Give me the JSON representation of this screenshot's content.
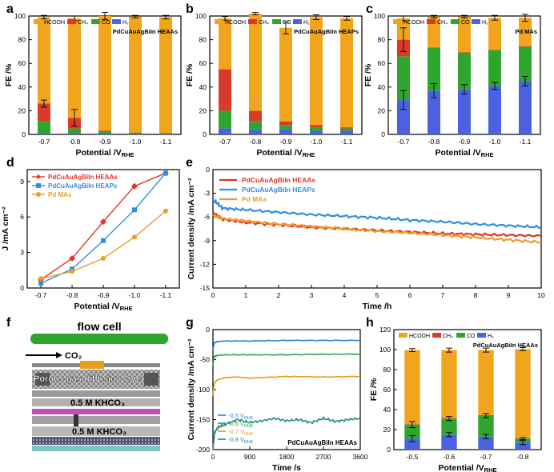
{
  "colors": {
    "hcooh": "#F0A51C",
    "ch4": "#D93A2B",
    "co": "#2EA62E",
    "h2": "#4A62E0",
    "heaa": "#E0352A",
    "heap": "#2F8FE0",
    "pd": "#F09A2A",
    "g05": "#2A86D0",
    "g06": "#2EA64A",
    "g07": "#E89A1C",
    "g08": "#1F8C86"
  },
  "chart_data": [
    {
      "panel": "a",
      "type": "bar",
      "stacked": true,
      "title": "PdCuAuAgBiIn HEAAs",
      "xlabel": "Potential /V",
      "xlabel_sub": "RHE",
      "ylabel": "FE /%",
      "categories": [
        "-0.7",
        "-0.8",
        "-0.9",
        "-1.0",
        "-1.1"
      ],
      "ylim": [
        0,
        100
      ],
      "yticks": [
        "0",
        "20",
        "40",
        "60",
        "80",
        "100"
      ],
      "series": [
        {
          "name": "H₂",
          "color_key": "h2",
          "values": [
            1,
            1,
            1,
            0.5,
            0.5
          ]
        },
        {
          "name": "CO",
          "color_key": "co",
          "values": [
            10,
            4,
            2,
            1,
            0.5
          ]
        },
        {
          "name": "CH₄",
          "color_key": "ch4",
          "values": [
            15,
            9,
            0,
            0,
            0
          ]
        },
        {
          "name": "HCOOH",
          "color_key": "hcooh",
          "values": [
            73,
            84,
            97,
            98,
            98
          ]
        }
      ],
      "errors": [
        {
          "series": 2,
          "cat": 0,
          "err": 3
        },
        {
          "series": 2,
          "cat": 1,
          "err": 7
        },
        {
          "series": 3,
          "cat": 0,
          "err": 1.5
        },
        {
          "series": 3,
          "cat": 1,
          "err": 2
        },
        {
          "series": 3,
          "cat": 2,
          "err": 3
        },
        {
          "series": 3,
          "cat": 3,
          "err": 1
        },
        {
          "series": 3,
          "cat": 4,
          "err": 1.5
        }
      ]
    },
    {
      "panel": "b",
      "type": "bar",
      "stacked": true,
      "title": "PdCuAuAgBiIn HEAPs",
      "xlabel": "Potential /V",
      "xlabel_sub": "RHE",
      "ylabel": "FE /%",
      "categories": [
        "-0.7",
        "-0.8",
        "-0.9",
        "-1.0",
        "-1.1"
      ],
      "ylim": [
        0,
        100
      ],
      "yticks": [
        "0",
        "20",
        "40",
        "60",
        "80",
        "100"
      ],
      "series": [
        {
          "name": "H₂",
          "color_key": "h2",
          "values": [
            5,
            4,
            4,
            3,
            3
          ]
        },
        {
          "name": "CO",
          "color_key": "co",
          "values": [
            15,
            7,
            4,
            3,
            2
          ]
        },
        {
          "name": "CH₄",
          "color_key": "ch4",
          "values": [
            35,
            9,
            3,
            2,
            1
          ]
        },
        {
          "name": "HCOOH",
          "color_key": "hcooh",
          "values": [
            43,
            82,
            79,
            91,
            92
          ]
        }
      ],
      "errors": [
        {
          "series": 3,
          "cat": 0,
          "err": 1.5
        },
        {
          "series": 3,
          "cat": 1,
          "err": 1
        },
        {
          "series": 3,
          "cat": 2,
          "err": 5
        },
        {
          "series": 3,
          "cat": 3,
          "err": 2
        },
        {
          "series": 3,
          "cat": 4,
          "err": 1.5
        }
      ]
    },
    {
      "panel": "c",
      "type": "bar",
      "stacked": true,
      "title": "Pd MAs",
      "xlabel": "Potential /V",
      "xlabel_sub": "RHE",
      "ylabel": "FE /%",
      "categories": [
        "-0.7",
        "-0.8",
        "-0.9",
        "-1.0",
        "-1.1"
      ],
      "ylim": [
        0,
        100
      ],
      "yticks": [
        "0",
        "20",
        "40",
        "60",
        "80",
        "100"
      ],
      "series": [
        {
          "name": "H₂",
          "color_key": "h2",
          "values": [
            29,
            37,
            38,
            41,
            45
          ]
        },
        {
          "name": "CO",
          "color_key": "co",
          "values": [
            37,
            36,
            31,
            30,
            29
          ]
        },
        {
          "name": "CH₄",
          "color_key": "ch4",
          "values": [
            14,
            0.5,
            0.5,
            0.5,
            0.5
          ]
        },
        {
          "name": "HCOOH",
          "color_key": "hcooh",
          "values": [
            18,
            26,
            30,
            27,
            24
          ]
        }
      ],
      "errors": [
        {
          "series": 0,
          "cat": 0,
          "err": 8
        },
        {
          "series": 0,
          "cat": 1,
          "err": 6
        },
        {
          "series": 0,
          "cat": 2,
          "err": 4
        },
        {
          "series": 0,
          "cat": 3,
          "err": 3
        },
        {
          "series": 0,
          "cat": 4,
          "err": 4
        },
        {
          "series": 2,
          "cat": 0,
          "err": 10
        },
        {
          "series": 3,
          "cat": 0,
          "err": 2
        },
        {
          "series": 3,
          "cat": 1,
          "err": 1
        },
        {
          "series": 3,
          "cat": 2,
          "err": 1
        },
        {
          "series": 3,
          "cat": 3,
          "err": 2
        },
        {
          "series": 3,
          "cat": 4,
          "err": 3
        }
      ]
    },
    {
      "panel": "d",
      "type": "line",
      "xlabel": "Potential /V",
      "xlabel_sub": "RHE",
      "ylabel": "J /mA cm⁻²",
      "categories": [
        "-0.7",
        "-0.8",
        "-0.9",
        "-1.0",
        "-1.1"
      ],
      "ylim": [
        0,
        10
      ],
      "yticks": [
        "0",
        "3",
        "6",
        "9"
      ],
      "series": [
        {
          "name": "PdCuAuAgBiIn HEAAs",
          "color_key": "heaa",
          "marker": "diamond",
          "values": [
            0.7,
            2.5,
            5.6,
            8.6,
            9.7
          ]
        },
        {
          "name": "PdCuAuAgBiIn HEAPs",
          "color_key": "heap",
          "marker": "square",
          "values": [
            0.4,
            1.6,
            4.0,
            6.6,
            9.7
          ]
        },
        {
          "name": "Pd MAs",
          "color_key": "pd",
          "marker": "circle",
          "values": [
            0.8,
            1.4,
            2.5,
            4.3,
            6.5
          ]
        }
      ]
    },
    {
      "panel": "e",
      "type": "line",
      "xlabel": "Time /h",
      "ylabel": "Current density /mA cm⁻²",
      "xlim": [
        0,
        10
      ],
      "xticks": [
        "0",
        "1",
        "2",
        "3",
        "4",
        "5",
        "6",
        "7",
        "8",
        "9",
        "10"
      ],
      "ylim": [
        -15,
        0
      ],
      "yticks": [
        "0",
        "-3",
        "-6",
        "-9",
        "-12",
        "-15"
      ],
      "series": [
        {
          "name": "PdCuAuAgBiIn HEAAs",
          "color_key": "heaa",
          "x": [
            0,
            0.3,
            1,
            2,
            3,
            4,
            5,
            6,
            7,
            8,
            9,
            10
          ],
          "y": [
            -5.4,
            -6.3,
            -6.7,
            -7.0,
            -7.3,
            -7.5,
            -7.7,
            -7.9,
            -8.1,
            -8.2,
            -8.3,
            -8.4
          ]
        },
        {
          "name": "PdCuAuAgBiIn HEAPs",
          "color_key": "heap",
          "x": [
            0,
            0.3,
            1,
            2,
            3,
            4,
            5,
            6,
            7,
            8,
            9,
            10
          ],
          "y": [
            -3.8,
            -4.9,
            -5.1,
            -5.4,
            -5.7,
            -5.9,
            -6.1,
            -6.4,
            -6.6,
            -6.9,
            -7.1,
            -7.3
          ]
        },
        {
          "name": "Pd MAs",
          "color_key": "pd",
          "x": [
            0,
            0.3,
            1,
            2,
            3,
            4,
            5,
            6,
            7,
            8,
            9,
            10
          ],
          "y": [
            -5.8,
            -6.2,
            -6.5,
            -6.9,
            -7.2,
            -7.5,
            -7.8,
            -8.0,
            -8.3,
            -8.6,
            -8.9,
            -9.2
          ]
        }
      ]
    },
    {
      "panel": "g",
      "type": "line",
      "xlabel": "Time /s",
      "ylabel": "Current density /mA cm⁻²",
      "note": "PdCuAuAgBiIn HEAAs",
      "xlim": [
        0,
        3600
      ],
      "xticks": [
        "0",
        "900",
        "1800",
        "2700",
        "3600"
      ],
      "ylim": [
        -200,
        0
      ],
      "yticks": [
        "0",
        "-50",
        "-100",
        "-150",
        "-200"
      ],
      "series": [
        {
          "name": "-0.5 V",
          "sub": "RHE",
          "color_key": "g05",
          "x": [
            0,
            30,
            100,
            300,
            900,
            1800,
            2700,
            3600
          ],
          "y": [
            -35,
            -22,
            -20,
            -19,
            -19,
            -18,
            -18,
            -18
          ]
        },
        {
          "name": "-0.6 V",
          "sub": "RHE",
          "color_key": "g06",
          "x": [
            0,
            30,
            100,
            300,
            900,
            1800,
            2700,
            3600
          ],
          "y": [
            -60,
            -45,
            -43,
            -42,
            -42,
            -42,
            -41,
            -41
          ]
        },
        {
          "name": "-0.7 V",
          "sub": "RHE",
          "color_key": "g07",
          "x": [
            0,
            30,
            100,
            300,
            600,
            900,
            1800,
            2700,
            3600
          ],
          "y": [
            -110,
            -90,
            -84,
            -80,
            -79,
            -81,
            -78,
            -79,
            -78
          ]
        },
        {
          "name": "-0.8 V",
          "sub": "RHE",
          "color_key": "g08",
          "x": [
            0,
            40,
            120,
            300,
            600,
            900,
            1200,
            1500,
            1800,
            2100,
            2400,
            2700,
            3000,
            3300,
            3600
          ],
          "y": [
            -200,
            -172,
            -163,
            -158,
            -150,
            -155,
            -152,
            -148,
            -152,
            -150,
            -155,
            -148,
            -153,
            -150,
            -148
          ]
        }
      ]
    },
    {
      "panel": "h",
      "type": "bar",
      "stacked": true,
      "title": "PdCuAuAgBiIn HEAAs",
      "xlabel": "Potential /V",
      "xlabel_sub": "RHE",
      "ylabel": "FE /%",
      "categories": [
        "-0.5",
        "-0.6",
        "-0.7",
        "-0.8"
      ],
      "ylim": [
        0,
        120
      ],
      "yticks": [
        "0",
        "20",
        "40",
        "60",
        "80",
        "100",
        "120"
      ],
      "series": [
        {
          "name": "H₂",
          "color_key": "h2",
          "values": [
            11,
            15,
            13,
            7
          ]
        },
        {
          "name": "CO",
          "color_key": "co",
          "values": [
            14,
            16,
            21,
            4
          ]
        },
        {
          "name": "CH₄",
          "color_key": "ch4",
          "values": [
            0.5,
            0.5,
            0.5,
            0.5
          ]
        },
        {
          "name": "HCOOH",
          "color_key": "hcooh",
          "values": [
            74,
            68,
            65,
            89
          ]
        }
      ],
      "errors": [
        {
          "series": 0,
          "cat": 0,
          "err": 3
        },
        {
          "series": 0,
          "cat": 1,
          "err": 2
        },
        {
          "series": 0,
          "cat": 2,
          "err": 2
        },
        {
          "series": 0,
          "cat": 3,
          "err": 2
        },
        {
          "series": 1,
          "cat": 0,
          "err": 3
        },
        {
          "series": 1,
          "cat": 1,
          "err": 2
        },
        {
          "series": 1,
          "cat": 2,
          "err": 2
        },
        {
          "series": 1,
          "cat": 3,
          "err": 1
        },
        {
          "series": 3,
          "cat": 0,
          "err": 1.5
        },
        {
          "series": 3,
          "cat": 1,
          "err": 2
        },
        {
          "series": 3,
          "cat": 2,
          "err": 2
        },
        {
          "series": 3,
          "cat": 3,
          "err": 1.5
        }
      ]
    }
  ],
  "panel_letters": [
    "a",
    "b",
    "c",
    "d",
    "e",
    "f",
    "g",
    "h"
  ],
  "legend_bar": [
    "HCOOH",
    "CH₄",
    "CO",
    "H₂"
  ],
  "schematic": {
    "title": "flow cell",
    "co2": "CO₂",
    "gdl": "Porous gas diffusion layer",
    "khco3_1": "0.5 M KHCO₃",
    "khco3_2": "0.5 M KHCO₃"
  }
}
